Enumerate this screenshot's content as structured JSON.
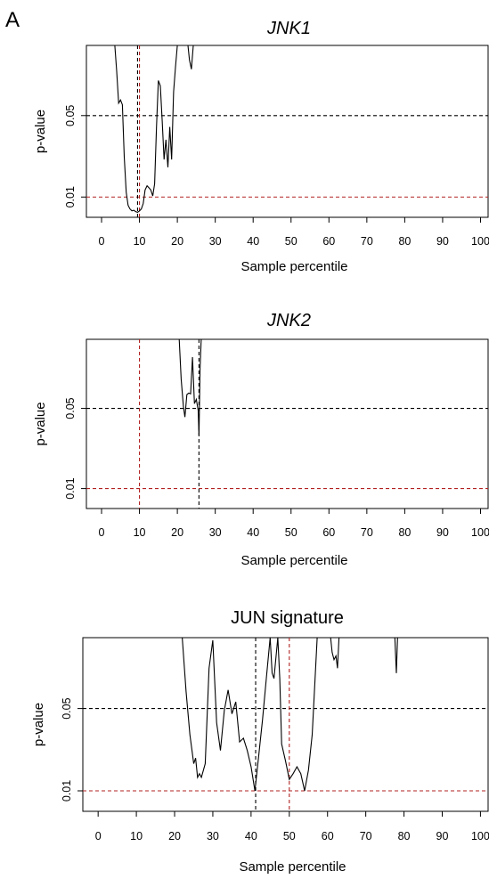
{
  "figure_label": "A",
  "colors": {
    "black_ref": "#000000",
    "red_ref": "#b22222",
    "series": "#000000"
  },
  "chart_data": [
    {
      "type": "line",
      "title": "JNK1",
      "title_style": "italic",
      "xlabel": "Sample percentile",
      "ylabel": "p-value",
      "xlim": [
        -4,
        102
      ],
      "x_ticks": [
        "0",
        "10",
        "20",
        "30",
        "40",
        "50",
        "60",
        "70",
        "80",
        "90",
        "100"
      ],
      "y_ticks": [
        "0.01",
        "0.05"
      ],
      "y_tick_values": [
        0.01,
        0.05
      ],
      "ylim_display": [
        0.0067,
        0.2
      ],
      "y_scale": "log",
      "ref_lines": [
        {
          "axis": "y",
          "value": 0.05,
          "color": "#000000",
          "style": "dashed"
        },
        {
          "axis": "y",
          "value": 0.01,
          "color": "#b22222",
          "style": "dashed"
        },
        {
          "axis": "x",
          "value": 10,
          "color": "#b22222",
          "style": "dashed"
        },
        {
          "axis": "x",
          "value": 9.5,
          "color": "#000000",
          "style": "dashed"
        }
      ],
      "series_segments": [
        {
          "x": [
            3.5,
            4,
            4.5,
            5,
            5.5,
            6,
            6.5,
            7,
            7.5,
            8,
            8.5,
            9,
            9.5,
            10,
            10.5,
            11,
            11.5,
            12,
            12.5,
            13,
            13.5,
            14,
            14.5,
            15,
            15.5,
            16,
            16.5,
            17,
            17.5,
            18,
            18.5,
            19,
            19.5,
            20
          ],
          "y": [
            0.2,
            0.12,
            0.064,
            0.068,
            0.062,
            0.022,
            0.011,
            0.0085,
            0.0079,
            0.0076,
            0.0077,
            0.0075,
            0.0074,
            0.0076,
            0.0079,
            0.0088,
            0.0115,
            0.0125,
            0.012,
            0.0115,
            0.0102,
            0.013,
            0.04,
            0.1,
            0.09,
            0.045,
            0.021,
            0.031,
            0.018,
            0.04,
            0.021,
            0.08,
            0.13,
            0.2
          ]
        },
        {
          "x": [
            22.8,
            23.2,
            23.7,
            24.2
          ],
          "y": [
            0.2,
            0.15,
            0.125,
            0.2
          ]
        }
      ]
    },
    {
      "type": "line",
      "title": "JNK2",
      "title_style": "italic",
      "xlabel": "Sample percentile",
      "ylabel": "p-value",
      "xlim": [
        -4,
        102
      ],
      "x_ticks": [
        "0",
        "10",
        "20",
        "30",
        "40",
        "50",
        "60",
        "70",
        "80",
        "90",
        "100"
      ],
      "y_ticks": [
        "0.01",
        "0.05"
      ],
      "y_tick_values": [
        0.01,
        0.05
      ],
      "ylim_display": [
        0.0067,
        0.2
      ],
      "y_scale": "log",
      "ref_lines": [
        {
          "axis": "y",
          "value": 0.05,
          "color": "#000000",
          "style": "dashed"
        },
        {
          "axis": "y",
          "value": 0.01,
          "color": "#b22222",
          "style": "dashed"
        },
        {
          "axis": "x",
          "value": 10,
          "color": "#b22222",
          "style": "dashed"
        },
        {
          "axis": "x",
          "value": 25.7,
          "color": "#000000",
          "style": "dashed"
        }
      ],
      "series_segments": [
        {
          "x": [
            20.5,
            21,
            21.6,
            22,
            22.5,
            23,
            23.5,
            24,
            24.5,
            25,
            25.5,
            25.7,
            26,
            26.3
          ],
          "y": [
            0.2,
            0.09,
            0.052,
            0.042,
            0.066,
            0.068,
            0.067,
            0.14,
            0.055,
            0.06,
            0.048,
            0.029,
            0.11,
            0.2
          ]
        }
      ]
    },
    {
      "type": "line",
      "title": "JUN signature",
      "title_style": "normal",
      "xlabel": "Sample percentile",
      "ylabel": "p-value",
      "xlim": [
        -4,
        102
      ],
      "x_ticks": [
        "0",
        "10",
        "20",
        "30",
        "40",
        "50",
        "60",
        "70",
        "80",
        "90",
        "100"
      ],
      "y_ticks": [
        "0.01",
        "0.05"
      ],
      "y_tick_values": [
        0.01,
        0.05
      ],
      "ylim_display": [
        0.0067,
        0.2
      ],
      "y_scale": "log",
      "ref_lines": [
        {
          "axis": "y",
          "value": 0.05,
          "color": "#000000",
          "style": "dashed"
        },
        {
          "axis": "y",
          "value": 0.01,
          "color": "#b22222",
          "style": "dashed"
        },
        {
          "axis": "x",
          "value": 41.2,
          "color": "#000000",
          "style": "dashed"
        },
        {
          "axis": "x",
          "value": 50,
          "color": "#b22222",
          "style": "dashed"
        }
      ],
      "series_segments": [
        {
          "x": [
            22,
            23,
            24,
            25,
            25.5,
            26,
            26.5,
            27,
            28,
            29,
            30,
            31,
            32,
            33,
            34,
            35,
            36,
            37,
            38,
            39,
            40,
            41,
            42,
            43,
            44,
            45,
            45.5,
            46,
            47,
            47.5,
            48,
            49,
            50,
            51,
            52,
            53,
            54,
            55,
            56,
            57.3
          ],
          "y": [
            0.2,
            0.07,
            0.03,
            0.017,
            0.019,
            0.013,
            0.014,
            0.013,
            0.017,
            0.11,
            0.19,
            0.038,
            0.022,
            0.048,
            0.072,
            0.045,
            0.057,
            0.026,
            0.028,
            0.022,
            0.016,
            0.01,
            0.02,
            0.04,
            0.09,
            0.2,
            0.1,
            0.09,
            0.2,
            0.09,
            0.025,
            0.018,
            0.0125,
            0.014,
            0.016,
            0.014,
            0.01,
            0.015,
            0.03,
            0.2
          ]
        },
        {
          "x": [
            60.8,
            61.2,
            61.7,
            62.2,
            62.6,
            63
          ],
          "y": [
            0.2,
            0.15,
            0.13,
            0.14,
            0.11,
            0.2
          ]
        },
        {
          "x": [
            77.6,
            78,
            78.3
          ],
          "y": [
            0.2,
            0.1,
            0.2
          ]
        }
      ]
    }
  ]
}
